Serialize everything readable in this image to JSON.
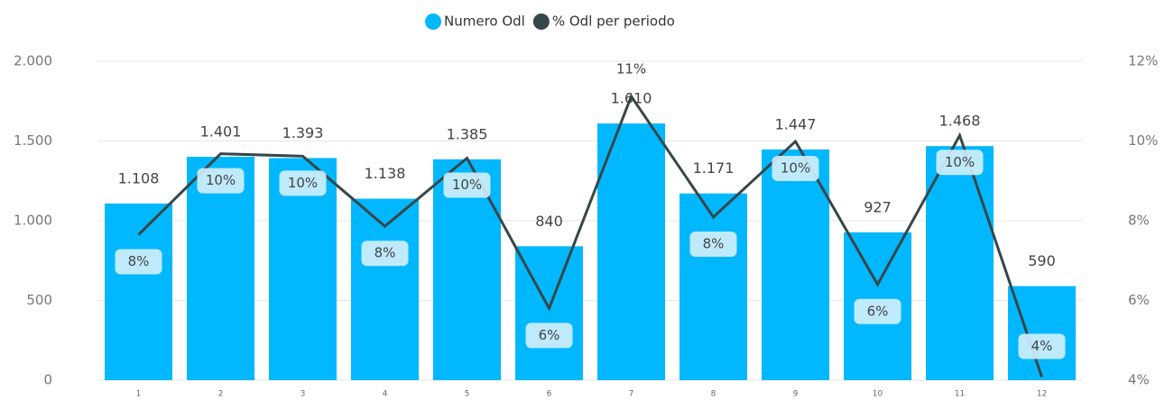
{
  "chart_data": {
    "type": "bar_line",
    "categories": [
      "1",
      "2",
      "3",
      "4",
      "5",
      "6",
      "7",
      "8",
      "9",
      "10",
      "11",
      "12"
    ],
    "series": [
      {
        "name": "Numero Odl",
        "color": "#01b8ff",
        "type": "bar",
        "values": [
          1108,
          1401,
          1393,
          1138,
          1385,
          840,
          1610,
          1171,
          1447,
          927,
          1468,
          590
        ],
        "value_labels": [
          "1.108",
          "1.401",
          "1.393",
          "1.138",
          "1.385",
          "840",
          "1.610",
          "1.171",
          "1.447",
          "927",
          "1.468",
          "590"
        ]
      },
      {
        "name": "% Odl per periodo",
        "color": "#374649",
        "type": "line",
        "axis": "y2",
        "values": [
          7.65,
          9.68,
          9.62,
          7.86,
          9.57,
          5.8,
          11.12,
          8.09,
          9.99,
          6.4,
          10.14,
          4.08
        ],
        "value_labels": [
          "8%",
          "10%",
          "10%",
          "8%",
          "10%",
          "6%",
          "11%",
          "8%",
          "10%",
          "6%",
          "10%",
          "4%"
        ]
      }
    ],
    "ylim": [
      0,
      2000
    ],
    "yticks": [
      0,
      500,
      {
        "value": 1000,
        "label": "1.000"
      },
      {
        "value": 1500,
        "label": "1.500"
      },
      {
        "value": 2000,
        "label": "2.000"
      }
    ],
    "y2lim": [
      4,
      12
    ],
    "y2ticks": [
      {
        "value": 4,
        "label": "4%"
      },
      {
        "value": 6,
        "label": "6%"
      },
      {
        "value": 8,
        "label": "8%"
      },
      {
        "value": 10,
        "label": "10%"
      },
      {
        "value": 12,
        "label": "12%"
      }
    ],
    "grid": true,
    "legend": "top"
  }
}
